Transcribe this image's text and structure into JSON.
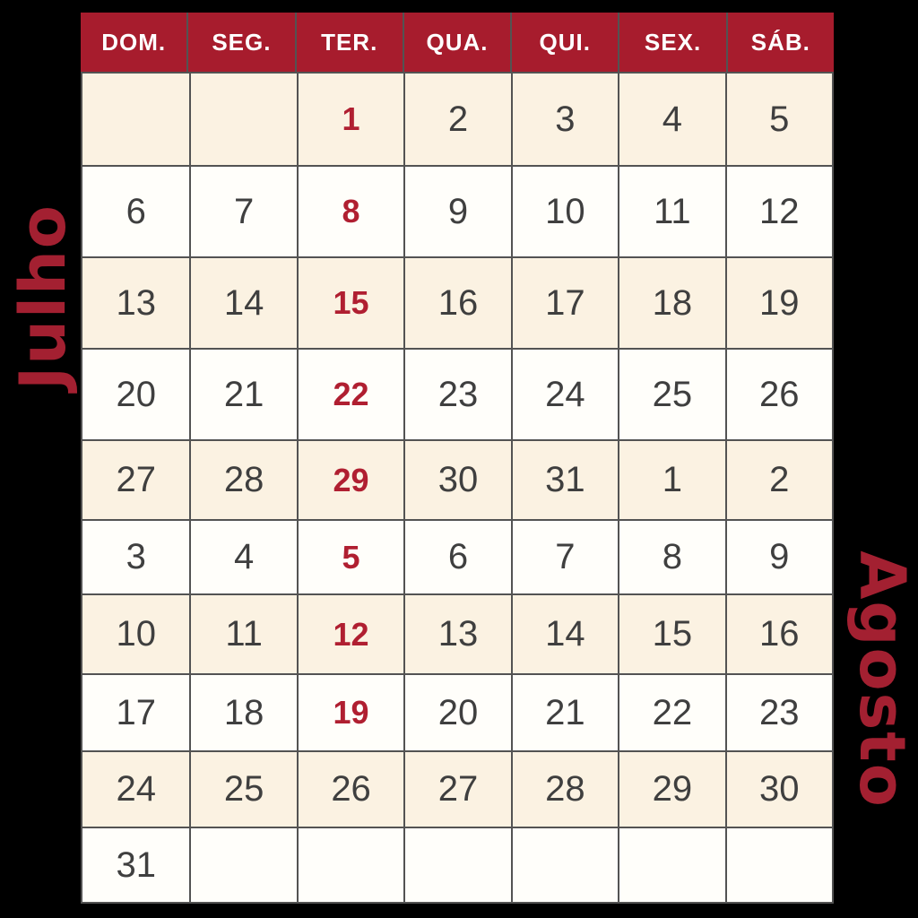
{
  "calendar": {
    "left_label": "Julho",
    "right_label": "Agosto",
    "weekdays": [
      "DOM.",
      "SEG.",
      "TER.",
      "QUA.",
      "QUI.",
      "SEX.",
      "SÁB."
    ],
    "highlighted_dates_note": "Tuesdays highlighted in red",
    "rows": [
      {
        "shade": "cream",
        "highlight_col": 2,
        "cells": [
          "",
          "",
          "1",
          "2",
          "3",
          "4",
          "5"
        ]
      },
      {
        "shade": "white",
        "highlight_col": 2,
        "cells": [
          "6",
          "7",
          "8",
          "9",
          "10",
          "11",
          "12"
        ]
      },
      {
        "shade": "cream",
        "highlight_col": 2,
        "cells": [
          "13",
          "14",
          "15",
          "16",
          "17",
          "18",
          "19"
        ]
      },
      {
        "shade": "white",
        "highlight_col": 2,
        "cells": [
          "20",
          "21",
          "22",
          "23",
          "24",
          "25",
          "26"
        ]
      },
      {
        "shade": "cream",
        "highlight_col": 2,
        "cells": [
          "27",
          "28",
          "29",
          "30",
          "31",
          "1",
          "2"
        ]
      },
      {
        "shade": "white",
        "highlight_col": 2,
        "cells": [
          "3",
          "4",
          "5",
          "6",
          "7",
          "8",
          "9"
        ]
      },
      {
        "shade": "cream",
        "highlight_col": 2,
        "cells": [
          "10",
          "11",
          "12",
          "13",
          "14",
          "15",
          "16"
        ]
      },
      {
        "shade": "white",
        "highlight_col": 2,
        "cells": [
          "17",
          "18",
          "19",
          "20",
          "21",
          "22",
          "23"
        ]
      },
      {
        "shade": "cream",
        "highlight_col": null,
        "cells": [
          "24",
          "25",
          "26",
          "27",
          "28",
          "29",
          "30"
        ]
      },
      {
        "shade": "white",
        "highlight_col": null,
        "first_cell_cream": true,
        "cells": [
          "31",
          "",
          "",
          "",
          "",
          "",
          ""
        ]
      }
    ]
  },
  "colors": {
    "page_bg": "#000000",
    "header_bg": "#a71c2d",
    "header_text": "#ffffff",
    "cream": "#fbf2e2",
    "cell_white": "#fffefa",
    "grid_line": "#535353",
    "date_color": "#3f3f3f",
    "highlight": "#b01f31",
    "label_color": "#a32031"
  }
}
